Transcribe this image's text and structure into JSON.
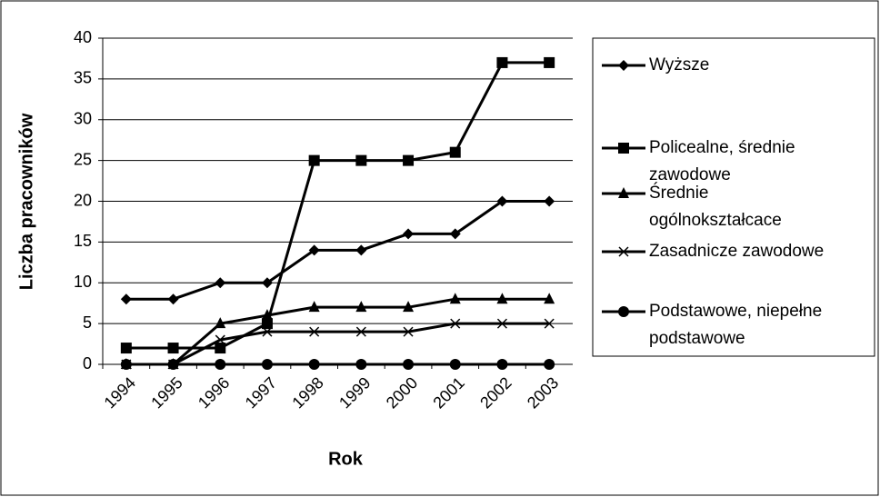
{
  "chart_data": {
    "type": "line",
    "x_label": "Rok",
    "y_label": "Liczba pracowników",
    "categories": [
      "1994",
      "1995",
      "1996",
      "1997",
      "1998",
      "1999",
      "2000",
      "2001",
      "2002",
      "2003"
    ],
    "series": [
      {
        "name": "Wyższe",
        "color": "#000000",
        "marker": "diamond",
        "values": [
          8,
          8,
          10,
          10,
          14,
          14,
          16,
          16,
          20,
          20
        ]
      },
      {
        "name": "Policealne, średnie zawodowe",
        "color": "#000000",
        "marker": "square",
        "values": [
          2,
          2,
          2,
          5,
          25,
          25,
          25,
          26,
          37,
          37
        ]
      },
      {
        "name": "Średnie ogólnokształcace",
        "color": "#000000",
        "marker": "triangle",
        "values": [
          0,
          0,
          5,
          6,
          7,
          7,
          7,
          8,
          8,
          8
        ]
      },
      {
        "name": "Zasadnicze zawodowe",
        "color": "#000000",
        "marker": "x",
        "values": [
          0,
          0,
          3,
          4,
          4,
          4,
          4,
          5,
          5,
          5
        ]
      },
      {
        "name": "Podstawowe, niepełne podstawowe",
        "color": "#000000",
        "marker": "circle",
        "values": [
          0,
          0,
          0,
          0,
          0,
          0,
          0,
          0,
          0,
          0
        ]
      }
    ],
    "ylim": [
      0,
      40
    ],
    "yticks": [
      0,
      5,
      10,
      15,
      20,
      25,
      30,
      35,
      40
    ],
    "grid": true,
    "legend": "right"
  }
}
